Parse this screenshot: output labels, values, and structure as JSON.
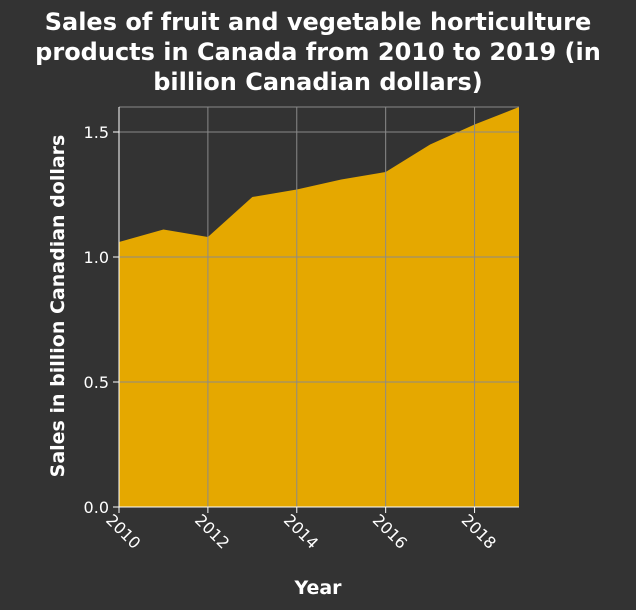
{
  "chart_data": {
    "type": "area",
    "title_lines": [
      "Sales of fruit and vegetable horticulture",
      "products in Canada from 2010 to 2019 (in",
      "billion Canadian dollars)"
    ],
    "xlabel": "Year",
    "ylabel": "Sales in billion Canadian dollars",
    "x": [
      2010,
      2011,
      2012,
      2013,
      2014,
      2015,
      2016,
      2017,
      2018,
      2019
    ],
    "series": [
      {
        "values": [
          1.06,
          1.11,
          1.08,
          1.24,
          1.27,
          1.31,
          1.34,
          1.45,
          1.53,
          1.6
        ]
      }
    ],
    "xlim": [
      2010,
      2019
    ],
    "ylim": [
      0,
      1.6
    ],
    "xticks": [
      2010,
      2012,
      2014,
      2016,
      2018
    ],
    "xtick_labels": [
      "2010",
      "2012",
      "2014",
      "2016",
      "2018"
    ],
    "yticks": [
      0,
      0.5,
      1,
      1.5
    ],
    "ytick_labels": [
      "0.0",
      "0.5",
      "1.0",
      "1.5"
    ],
    "grid": true,
    "colors": {
      "background": "#333333",
      "area_fill": "#e5a800",
      "grid": "#8a8a8a",
      "text": "#ffffff"
    }
  }
}
